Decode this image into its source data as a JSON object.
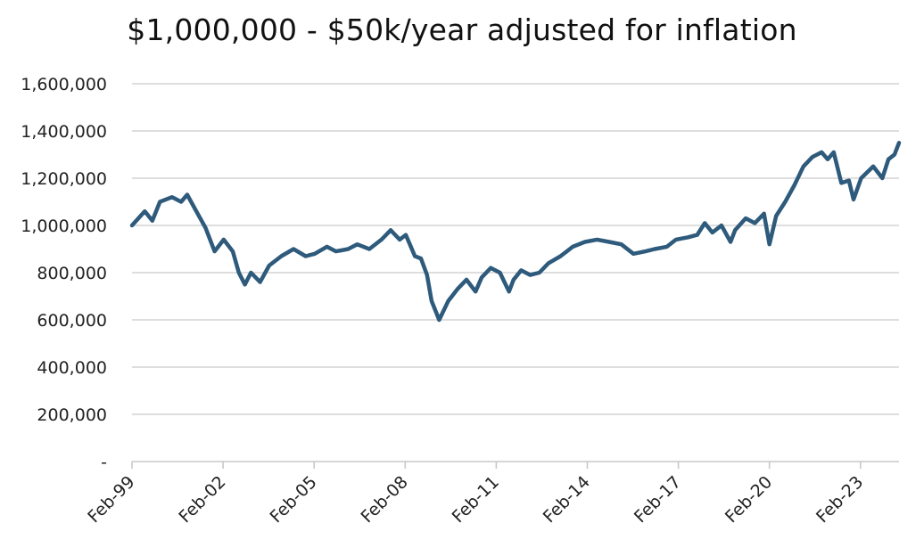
{
  "chart_data": {
    "type": "line",
    "title": "$1,000,000 - $50k/year adjusted for inflation",
    "xlabel": "",
    "ylabel": "",
    "x_tick_labels": [
      "Feb-99",
      "Feb-02",
      "Feb-05",
      "Feb-08",
      "Feb-11",
      "Feb-14",
      "Feb-17",
      "Feb-20",
      "Feb-23"
    ],
    "y_tick_labels": [
      "-",
      "200,000",
      "400,000",
      "600,000",
      "800,000",
      "1,000,000",
      "1,200,000",
      "1,400,000",
      "1,600,000"
    ],
    "ylim": [
      0,
      1600000
    ],
    "grid": true,
    "line_color": "#2e5a7c",
    "series": [
      {
        "x": [
          1999.08,
          1999.5,
          1999.75,
          2000.0,
          2000.4,
          2000.7,
          2000.9,
          2001.2,
          2001.5,
          2001.8,
          2002.1,
          2002.4,
          2002.6,
          2002.8,
          2003.0,
          2003.3,
          2003.6,
          2004.0,
          2004.4,
          2004.8,
          2005.1,
          2005.5,
          2005.8,
          2006.2,
          2006.5,
          2006.9,
          2007.3,
          2007.6,
          2007.9,
          2008.1,
          2008.4,
          2008.6,
          2008.8,
          2008.95,
          2009.2,
          2009.5,
          2009.8,
          2010.1,
          2010.4,
          2010.6,
          2010.9,
          2011.2,
          2011.5,
          2011.65,
          2011.9,
          2012.2,
          2012.5,
          2012.8,
          2013.2,
          2013.6,
          2014.0,
          2014.4,
          2014.8,
          2015.2,
          2015.6,
          2016.0,
          2016.3,
          2016.7,
          2017.0,
          2017.4,
          2017.7,
          2017.95,
          2018.2,
          2018.5,
          2018.8,
          2018.95,
          2019.3,
          2019.6,
          2019.9,
          2020.08,
          2020.3,
          2020.6,
          2020.9,
          2021.2,
          2021.5,
          2021.8,
          2022.0,
          2022.2,
          2022.45,
          2022.7,
          2022.85,
          2023.1,
          2023.5,
          2023.8,
          2024.0,
          2024.2,
          2024.35
        ],
        "y": [
          1000000,
          1060000,
          1020000,
          1100000,
          1120000,
          1100000,
          1130000,
          1060000,
          990000,
          890000,
          940000,
          890000,
          800000,
          750000,
          800000,
          760000,
          830000,
          870000,
          900000,
          870000,
          880000,
          910000,
          890000,
          900000,
          920000,
          900000,
          940000,
          980000,
          940000,
          960000,
          870000,
          860000,
          790000,
          680000,
          600000,
          680000,
          730000,
          770000,
          720000,
          780000,
          820000,
          800000,
          720000,
          770000,
          810000,
          790000,
          800000,
          840000,
          870000,
          910000,
          930000,
          940000,
          930000,
          920000,
          880000,
          890000,
          900000,
          910000,
          940000,
          950000,
          960000,
          1010000,
          970000,
          1000000,
          930000,
          980000,
          1030000,
          1010000,
          1050000,
          920000,
          1040000,
          1100000,
          1170000,
          1250000,
          1290000,
          1310000,
          1280000,
          1310000,
          1180000,
          1190000,
          1110000,
          1200000,
          1250000,
          1200000,
          1280000,
          1300000,
          1350000
        ]
      }
    ]
  }
}
